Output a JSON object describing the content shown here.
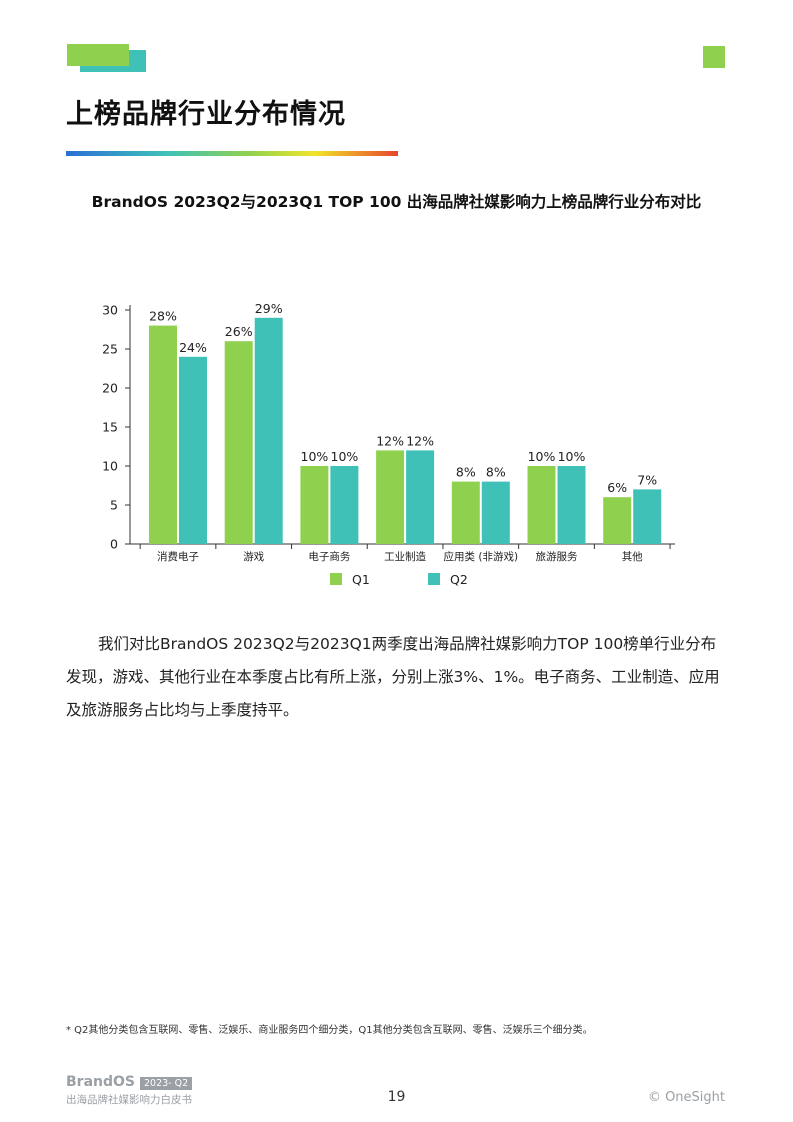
{
  "page": {
    "title": "上榜品牌行业分布情况",
    "chart_heading": "BrandOS 2023Q2与2023Q1 TOP 100 出海品牌社媒影响力上榜品牌行业分布对比",
    "paragraph": "我们对比BrandOS 2023Q2与2023Q1两季度出海品牌社媒影响力TOP 100榜单行业分布发现，游戏、其他行业在本季度占比有所上涨，分别上涨3%、1%。电子商务、工业制造、应用及旅游服务占比均与上季度持平。",
    "footnote": "* Q2其他分类包含互联网、零售、泛娱乐、商业服务四个细分类，Q1其他分类包含互联网、零售、泛娱乐三个细分类。",
    "footer_brand": "BrandOS",
    "footer_badge": "2023- Q2",
    "footer_subtitle": "出海品牌社媒影响力白皮书",
    "page_number": "19",
    "copyright": "© OneSight"
  },
  "colors": {
    "q1": "#8fd14f",
    "q2": "#3fc1b8"
  },
  "chart_data": {
    "type": "bar",
    "categories": [
      "消费电子",
      "游戏",
      "电子商务",
      "工业制造",
      "应用类 (非游戏)",
      "旅游服务",
      "其他"
    ],
    "series": [
      {
        "name": "Q1",
        "values": [
          28,
          26,
          10,
          12,
          8,
          10,
          6
        ],
        "labels": [
          "28%",
          "26%",
          "10%",
          "12%",
          "8%",
          "10%",
          "6%"
        ]
      },
      {
        "name": "Q2",
        "values": [
          24,
          29,
          10,
          12,
          8,
          10,
          7
        ],
        "labels": [
          "24%",
          "29%",
          "10%",
          "12%",
          "8%",
          "10%",
          "7%"
        ]
      }
    ],
    "yticks": [
      "0",
      "5",
      "10",
      "15",
      "20",
      "25",
      "30"
    ],
    "ylim": [
      0,
      30
    ],
    "legend_position": "bottom"
  }
}
